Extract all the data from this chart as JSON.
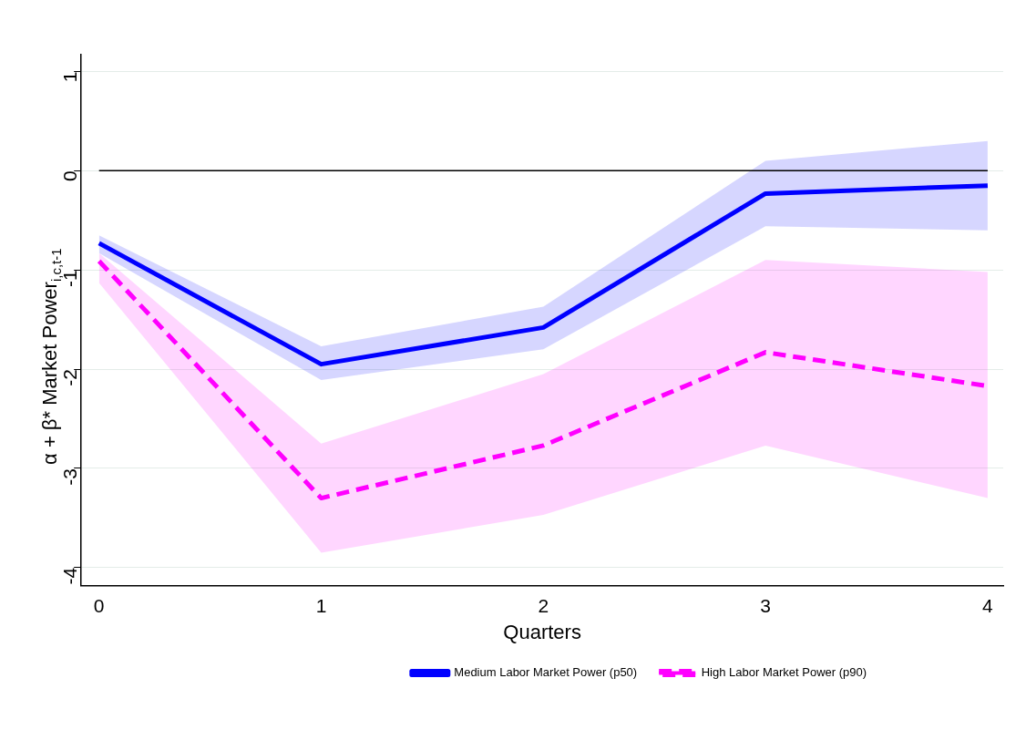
{
  "chart_data": {
    "type": "line",
    "xlabel": "Quarters",
    "ylabel": "α + β* Market Power$_{i,c,t-1}$",
    "x": [
      0,
      1,
      2,
      3,
      4
    ],
    "series": [
      {
        "name": "Medium Labor Market Power (p50)",
        "color": "#0000ff",
        "line_style": "solid",
        "values": [
          -0.73,
          -1.95,
          -1.58,
          -0.23,
          -0.15
        ],
        "lower": [
          -0.83,
          -2.11,
          -1.8,
          -0.56,
          -0.6
        ],
        "upper": [
          -0.65,
          -1.77,
          -1.37,
          0.1,
          0.3
        ]
      },
      {
        "name": "High Labor Market Power (p90)",
        "color": "#ff00ff",
        "line_style": "dashed",
        "values": [
          -0.91,
          -3.3,
          -2.77,
          -1.83,
          -2.17
        ],
        "lower": [
          -1.13,
          -3.85,
          -3.47,
          -2.77,
          -3.3
        ],
        "upper": [
          -0.83,
          -2.75,
          -2.05,
          -0.9,
          -1.02
        ]
      }
    ],
    "xlim": [
      -0.08,
      4.07
    ],
    "xticks": [
      0,
      1,
      2,
      3,
      4
    ],
    "ylim": [
      -4.18,
      1.17
    ],
    "yticks": [
      -4,
      -3,
      -2,
      -1,
      0,
      1
    ],
    "ref_lines": [
      {
        "axis": "y",
        "value": 0,
        "color": "#000000"
      }
    ],
    "grid": "y",
    "legend": "bottom",
    "marker": "none"
  }
}
